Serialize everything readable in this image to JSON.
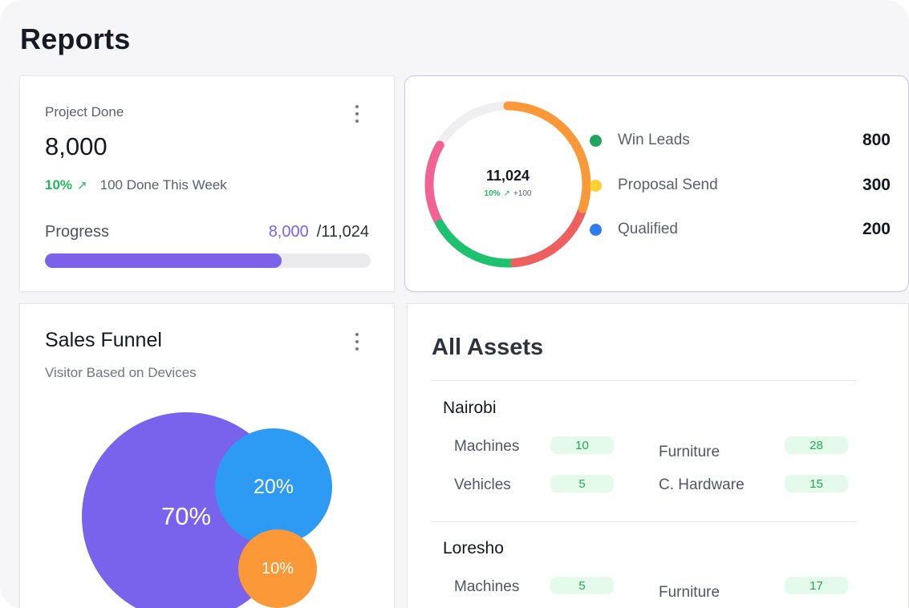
{
  "page": {
    "title": "Reports"
  },
  "project_card": {
    "label": "Project Done",
    "value": "8,000",
    "trend_pct": "10%",
    "trend_note": "100 Done This Week",
    "progress_label": "Progress",
    "progress_current": "8,000",
    "progress_total": "/11,024",
    "progress_fraction": 0.7257,
    "menu_icon": "kebab-vertical-icon"
  },
  "leads_card": {
    "total": "11,024",
    "trend_pct": "10%",
    "trend_delta": "+100",
    "legend": [
      {
        "label": "Win Leads",
        "value": "800",
        "color": "#1fa55e"
      },
      {
        "label": "Proposal Send",
        "value": "300",
        "color": "#fcd233"
      },
      {
        "label": "Qualified",
        "value": "200",
        "color": "#2d7cf0"
      }
    ],
    "ring_colors": {
      "track": "#efeff2",
      "orange": "#fb9939",
      "red": "#ee6060",
      "green": "#1ec26e",
      "pink": "#f06393"
    }
  },
  "funnel_card": {
    "title": "Sales Funnel",
    "subtitle": "Visitor Based on Devices",
    "bubbles": [
      {
        "label": "70%",
        "value": 70,
        "color": "#7a63ec"
      },
      {
        "label": "20%",
        "value": 20,
        "color": "#2d9af3"
      },
      {
        "label": "10%",
        "value": 10,
        "color": "#fb9939"
      }
    ],
    "menu_icon": "kebab-vertical-icon"
  },
  "assets_card": {
    "title": "All Assets",
    "locations": [
      {
        "name": "Nairobi",
        "items": [
          {
            "label": "Machines",
            "value": "10"
          },
          {
            "label": "Furniture",
            "value": "28"
          },
          {
            "label": "Vehicles",
            "value": "5"
          },
          {
            "label": "C. Hardware",
            "value": "15"
          }
        ]
      },
      {
        "name": "Loresho",
        "items": [
          {
            "label": "Machines",
            "value": "5"
          },
          {
            "label": "Furniture",
            "value": "17"
          }
        ]
      }
    ]
  }
}
